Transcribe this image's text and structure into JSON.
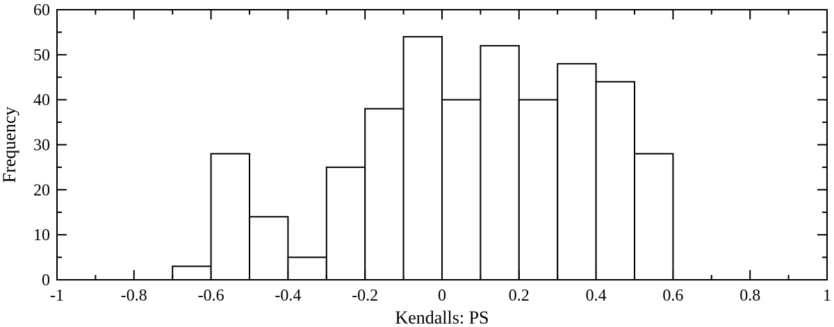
{
  "chart_data": {
    "type": "bar",
    "title": "",
    "xlabel": "Kendalls: PS",
    "ylabel": "Frequency",
    "xlim": [
      -1,
      1
    ],
    "ylim": [
      0,
      60
    ],
    "bins": [
      {
        "x0": -0.7,
        "x1": -0.6,
        "value": 3
      },
      {
        "x0": -0.6,
        "x1": -0.5,
        "value": 28
      },
      {
        "x0": -0.5,
        "x1": -0.4,
        "value": 14
      },
      {
        "x0": -0.4,
        "x1": -0.3,
        "value": 5
      },
      {
        "x0": -0.3,
        "x1": -0.2,
        "value": 25
      },
      {
        "x0": -0.2,
        "x1": -0.1,
        "value": 38
      },
      {
        "x0": -0.1,
        "x1": 0.0,
        "value": 54
      },
      {
        "x0": 0.0,
        "x1": 0.1,
        "value": 40
      },
      {
        "x0": 0.1,
        "x1": 0.2,
        "value": 52
      },
      {
        "x0": 0.2,
        "x1": 0.3,
        "value": 40
      },
      {
        "x0": 0.3,
        "x1": 0.4,
        "value": 48
      },
      {
        "x0": 0.4,
        "x1": 0.5,
        "value": 44
      },
      {
        "x0": 0.5,
        "x1": 0.6,
        "value": 28
      }
    ],
    "x_ticks": [
      -1,
      -0.8,
      -0.6,
      -0.4,
      -0.2,
      0,
      0.2,
      0.4,
      0.6,
      0.8,
      1
    ],
    "x_tick_labels": [
      "-1",
      "-0.8",
      "-0.6",
      "-0.4",
      "-0.2",
      "0",
      "0.2",
      "0.4",
      "0.6",
      "0.8",
      "1"
    ],
    "y_ticks": [
      0,
      10,
      20,
      30,
      40,
      50,
      60
    ],
    "y_tick_labels": [
      "0",
      "10",
      "20",
      "30",
      "40",
      "50",
      "60"
    ],
    "x_minor_step": 0.1,
    "y_minor_step": 5,
    "grid": false,
    "bar_fill": "#ffffff",
    "bar_stroke": "#000000"
  }
}
